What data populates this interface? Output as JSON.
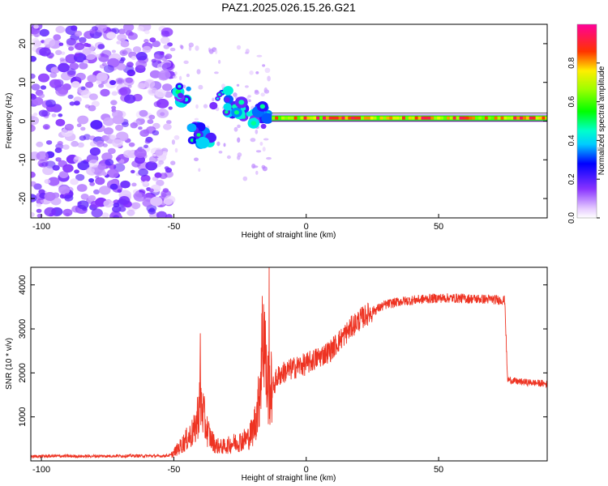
{
  "title": "PAZ1.2025.026.15.26.G21",
  "chart_data": [
    {
      "type": "heatmap",
      "xlabel": "Height of straight line (km)",
      "ylabel": "Frequency (Hz)",
      "xlim": [
        -104,
        91
      ],
      "ylim": [
        -25,
        25
      ],
      "x_ticks": [
        -100,
        -50,
        0,
        50
      ],
      "y_ticks": [
        -20,
        -10,
        0,
        10,
        20
      ],
      "colorbar": {
        "label": "Normalized spectral amplitude",
        "range": [
          0,
          1
        ],
        "ticks": [
          0.0,
          0.2,
          0.4,
          0.6,
          0.8
        ],
        "colormap": "white-purple-blue-cyan-green-yellow-red-magenta"
      },
      "features": [
        {
          "region": "noise",
          "x_range": [
            -104,
            -51
          ],
          "freq_range": [
            -25,
            25
          ],
          "amplitude": 0.15
        },
        {
          "region": "transition",
          "x_range": [
            -51,
            -13
          ],
          "freq_center_hz": [
            7,
            -3,
            5,
            2,
            1
          ],
          "amplitude": 0.3
        },
        {
          "region": "carrier-line",
          "x_range": [
            -13,
            91
          ],
          "freq_hz": 0.8,
          "amplitude": 0.9
        }
      ],
      "grid": false
    },
    {
      "type": "line",
      "xlabel": "Height of straight line (km)",
      "ylabel": "SNR (10 * v/v)",
      "xlim": [
        -104,
        91
      ],
      "ylim": [
        0,
        4400
      ],
      "x_ticks": [
        -100,
        -50,
        0,
        50
      ],
      "y_ticks": [
        1000,
        2000,
        3000,
        4000
      ],
      "series": [
        {
          "color": "#ee3322",
          "x": [
            -104,
            -95,
            -85,
            -75,
            -65,
            -55,
            -51,
            -48,
            -45,
            -42,
            -40,
            -38,
            -36,
            -34,
            -32,
            -30,
            -28,
            -25,
            -22,
            -20,
            -18,
            -17,
            -16,
            -15,
            -14,
            -13,
            -11,
            -9,
            -7,
            -5,
            -3,
            0,
            3,
            6,
            9,
            12,
            15,
            18,
            21,
            25,
            30,
            35,
            40,
            45,
            50,
            55,
            60,
            65,
            70,
            75,
            76,
            80,
            85,
            91
          ],
          "y": [
            100,
            110,
            105,
            110,
            115,
            110,
            130,
            300,
            500,
            700,
            1400,
            800,
            500,
            350,
            320,
            340,
            400,
            450,
            520,
            700,
            1300,
            2300,
            3200,
            1800,
            1700,
            1600,
            1900,
            2000,
            2050,
            2100,
            2150,
            2200,
            2300,
            2400,
            2500,
            2700,
            2900,
            3100,
            3250,
            3400,
            3550,
            3620,
            3650,
            3680,
            3700,
            3700,
            3690,
            3680,
            3670,
            3650,
            1850,
            1800,
            1780,
            1750
          ]
        }
      ],
      "peaks": [
        {
          "x": -40,
          "y": 2900
        },
        {
          "x": -14,
          "y": 4400
        }
      ],
      "grid": false
    }
  ]
}
